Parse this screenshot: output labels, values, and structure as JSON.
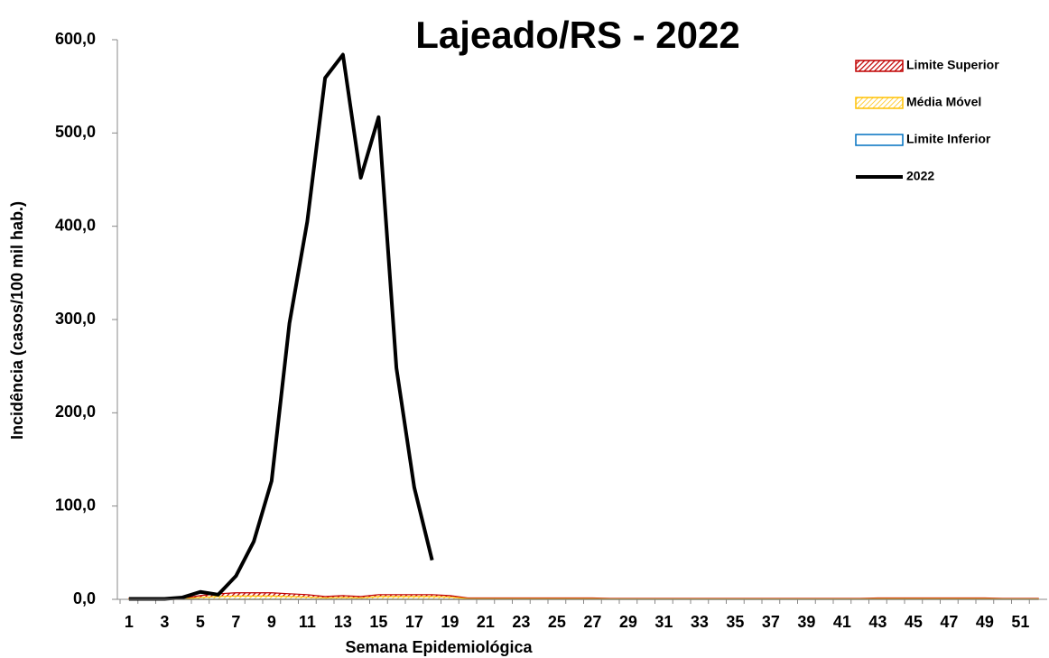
{
  "chart_data": {
    "type": "line",
    "title": "Lajeado/RS - 2022",
    "xlabel": "Semana Epidemiológica",
    "ylabel": "Incidência (casos/100 mil hab.)",
    "categories": [
      1,
      null,
      3,
      null,
      5,
      null,
      7,
      null,
      9,
      null,
      11,
      null,
      13,
      null,
      15,
      null,
      17,
      null,
      19,
      null,
      21,
      null,
      23,
      null,
      25,
      null,
      27,
      null,
      29,
      null,
      31,
      null,
      33,
      null,
      35,
      null,
      37,
      null,
      39,
      null,
      41,
      null,
      43,
      null,
      45,
      null,
      47,
      null,
      49,
      null,
      51,
      null
    ],
    "ylim": [
      0,
      600
    ],
    "yticks": [
      {
        "value": 0,
        "label": "0,0"
      },
      {
        "value": 100,
        "label": "100,0"
      },
      {
        "value": 200,
        "label": "200,0"
      },
      {
        "value": 300,
        "label": "300,0"
      },
      {
        "value": 400,
        "label": "400,0"
      },
      {
        "value": 500,
        "label": "500,0"
      },
      {
        "value": 600,
        "label": "600,0"
      }
    ],
    "legend": "upper right",
    "series": [
      {
        "name": "Limite Superior",
        "type": "area",
        "color": "#c00000",
        "values": [
          1,
          1,
          1,
          1,
          4,
          6,
          7,
          7,
          7,
          6,
          5,
          3,
          4,
          3,
          5,
          5,
          5,
          5,
          4,
          1.5,
          1.5,
          1.5,
          1.5,
          1.5,
          1.5,
          1.5,
          1.5,
          1,
          1,
          1,
          1,
          1,
          1,
          1,
          1,
          1,
          1,
          1,
          1,
          1,
          1,
          1,
          1.5,
          1.5,
          1.5,
          1.5,
          1.5,
          1.5,
          1.5,
          1,
          1,
          1
        ]
      },
      {
        "name": "Média Móvel",
        "type": "area",
        "color": "#ffc000",
        "values": [
          0.5,
          0.5,
          0.5,
          0.5,
          2,
          3,
          3.5,
          3.5,
          3.5,
          3,
          2.5,
          1.5,
          2,
          1.5,
          3,
          3,
          3,
          3,
          2.5,
          0.8,
          0.8,
          0.8,
          0.8,
          0.8,
          0.8,
          0.8,
          0.8,
          0.5,
          0.5,
          0.5,
          0.5,
          0.5,
          0.5,
          0.5,
          0.5,
          0.5,
          0.5,
          0.5,
          0.5,
          0.5,
          0.5,
          0.5,
          0.8,
          0.8,
          0.8,
          0.8,
          0.8,
          0.8,
          0.8,
          0.5,
          0.5,
          0.5
        ]
      },
      {
        "name": "Limite Inferior",
        "type": "area",
        "color": "#0070c0",
        "values": [
          0,
          0,
          0,
          0,
          0,
          0,
          0,
          0,
          0,
          0,
          0,
          0,
          0,
          0,
          0,
          0,
          0,
          0,
          0,
          0,
          0,
          0,
          0,
          0,
          0,
          0,
          0,
          0,
          0,
          0,
          0,
          0,
          0,
          0,
          0,
          0,
          0,
          0,
          0,
          0,
          0,
          0,
          0,
          0,
          0,
          0,
          0,
          0,
          0,
          0,
          0,
          0
        ]
      },
      {
        "name": "2022",
        "type": "line",
        "color": "#000000",
        "values": [
          0.5,
          0.5,
          0.5,
          2,
          8,
          5,
          25,
          62,
          127,
          296,
          405,
          559,
          584,
          452,
          517,
          248,
          120,
          42,
          null,
          null,
          null,
          null,
          null,
          null,
          null,
          null,
          null,
          null,
          null,
          null,
          null,
          null,
          null,
          null,
          null,
          null,
          null,
          null,
          null,
          null,
          null,
          null,
          null,
          null,
          null,
          null,
          null,
          null,
          null,
          null,
          null,
          null
        ]
      }
    ]
  }
}
